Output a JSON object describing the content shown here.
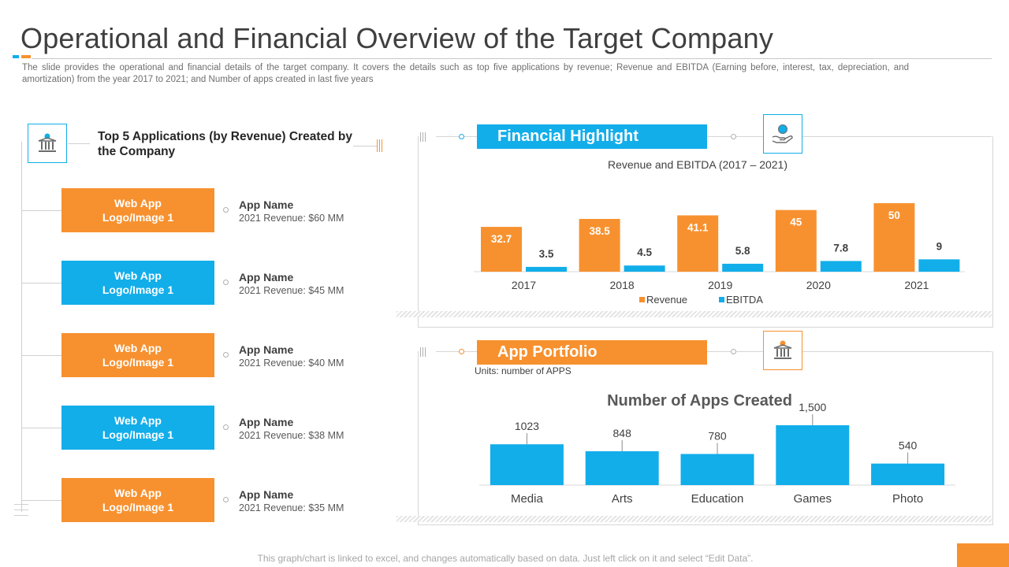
{
  "title": "Operational and Financial Overview of the Target Company",
  "subtitle": "The slide provides the operational and financial details of the target company. It covers the details such as top five applications by revenue; Revenue and EBITDA (Earning before, interest, tax, depreciation, and amortization) from the year 2017 to 2021; and Number of apps created in last five years",
  "top_apps": {
    "heading": "Top 5 Applications (by Revenue) Created by the Company",
    "icon": "bank-icon",
    "items": [
      {
        "logo_label": "Web App\nLogo/Image 1",
        "name": "App Name",
        "revenue": "2021 Revenue:  $60 MM",
        "color": "#f7912f"
      },
      {
        "logo_label": "Web App\nLogo/Image 1",
        "name": "App Name",
        "revenue": "2021 Revenue:  $45 MM",
        "color": "#12aeea"
      },
      {
        "logo_label": "Web App\nLogo/Image 1",
        "name": "App Name",
        "revenue": "2021 Revenue:  $40 MM",
        "color": "#f7912f"
      },
      {
        "logo_label": "Web App\nLogo/Image 1",
        "name": "App Name",
        "revenue": "2021 Revenue:  $38 MM",
        "color": "#12aeea"
      },
      {
        "logo_label": "Web App\nLogo/Image 1",
        "name": "App Name",
        "revenue": "2021 Revenue:  $35 MM",
        "color": "#f7912f"
      }
    ]
  },
  "financial": {
    "banner": "Financial Highlight",
    "icon": "hand-coin-icon"
  },
  "portfolio": {
    "banner": "App Portfolio",
    "icon": "bank-icon",
    "units": "Units: number of APPS"
  },
  "footer": "This graph/chart is linked to excel, and changes automatically based on data. Just left click on it and select “Edit Data”.",
  "colors": {
    "orange": "#f7912f",
    "blue": "#12aeea"
  },
  "chart_data": [
    {
      "type": "bar",
      "title": "Revenue and EBITDA (2017 – 2021)",
      "categories": [
        "2017",
        "2018",
        "2019",
        "2020",
        "2021"
      ],
      "series": [
        {
          "name": "Revenue",
          "values": [
            32.7,
            38.5,
            41.1,
            45,
            50
          ],
          "labels": [
            "32.7",
            "38.5",
            "41.1",
            "45",
            "50"
          ],
          "color": "#f7912f"
        },
        {
          "name": "EBITDA",
          "values": [
            3.5,
            4.5,
            5.8,
            7.8,
            9
          ],
          "labels": [
            "3.5",
            "4.5",
            "5.8",
            "7.8",
            "9"
          ],
          "color": "#12aeea"
        }
      ],
      "ylim": [
        0,
        50
      ],
      "legend": "bottom",
      "grid": false
    },
    {
      "type": "bar",
      "title": "Number of Apps Created",
      "categories": [
        "Media",
        "Arts",
        "Education",
        "Games",
        "Photo"
      ],
      "values": [
        1023,
        848,
        780,
        1500,
        540
      ],
      "labels": [
        "1023",
        "848",
        "780",
        "1,500",
        "540"
      ],
      "ylim": [
        0,
        1500
      ],
      "color": "#12aeea",
      "grid": false
    }
  ]
}
